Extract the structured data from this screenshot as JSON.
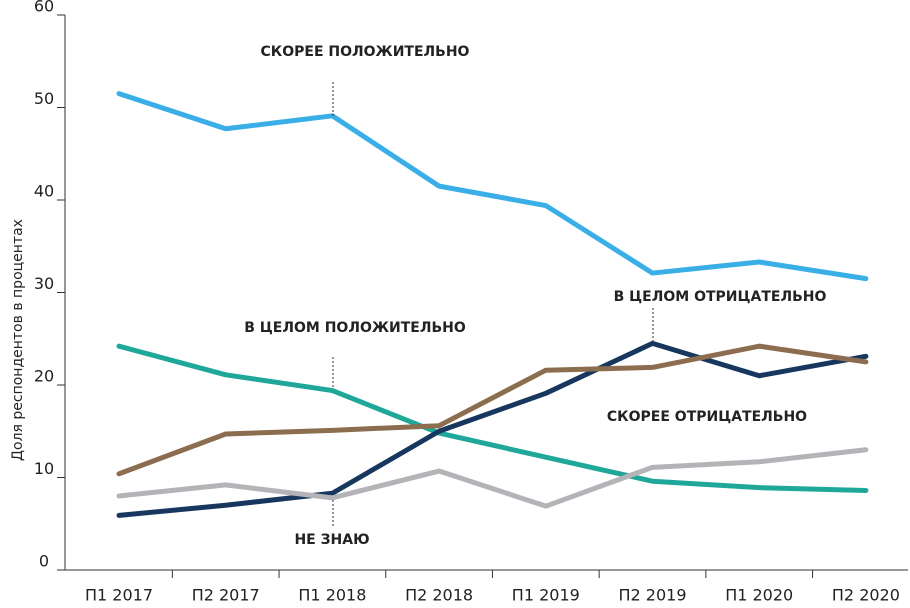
{
  "chart_data": {
    "type": "line",
    "y_label": "Доля респондентов в процентах",
    "categories": [
      "П1 2017",
      "П2 2017",
      "П1 2018",
      "П2 2018",
      "П1 2019",
      "П2 2019",
      "П1 2020",
      "П2 2020"
    ],
    "series": [
      {
        "name": "СКОРЕЕ ПОЛОЖИТЕЛЬНО",
        "color": "#3aaee6",
        "values": [
          51.5,
          47.7,
          49.1,
          41.5,
          39.4,
          32.1,
          33.3,
          31.5
        ]
      },
      {
        "name": "В ЦЕЛОМ ПОЛОЖИТЕЛЬНО",
        "color": "#1fa89a",
        "values": [
          24.2,
          21.1,
          19.4,
          14.8,
          12.2,
          9.6,
          8.9,
          8.6
        ]
      },
      {
        "name": "В ЦЕЛОМ ОТРИЦАТЕЛЬНО",
        "color": "#17375e",
        "values": [
          5.9,
          7.0,
          8.3,
          15.0,
          19.1,
          24.5,
          21.0,
          23.1
        ]
      },
      {
        "name": "СКОРЕЕ ОТРИЦАТЕЛЬНО",
        "color": "#8c6d4f",
        "values": [
          10.4,
          14.7,
          15.1,
          15.6,
          21.6,
          21.9,
          24.2,
          22.5
        ]
      },
      {
        "name": "НЕ ЗНАЮ",
        "color": "#b4b4b8",
        "values": [
          8.0,
          9.2,
          7.8,
          10.7,
          6.9,
          11.1,
          11.7,
          13.0
        ]
      }
    ],
    "ylim": [
      0,
      60
    ],
    "yticks": [
      0,
      10,
      20,
      30,
      40,
      50,
      60
    ],
    "grid": false
  }
}
